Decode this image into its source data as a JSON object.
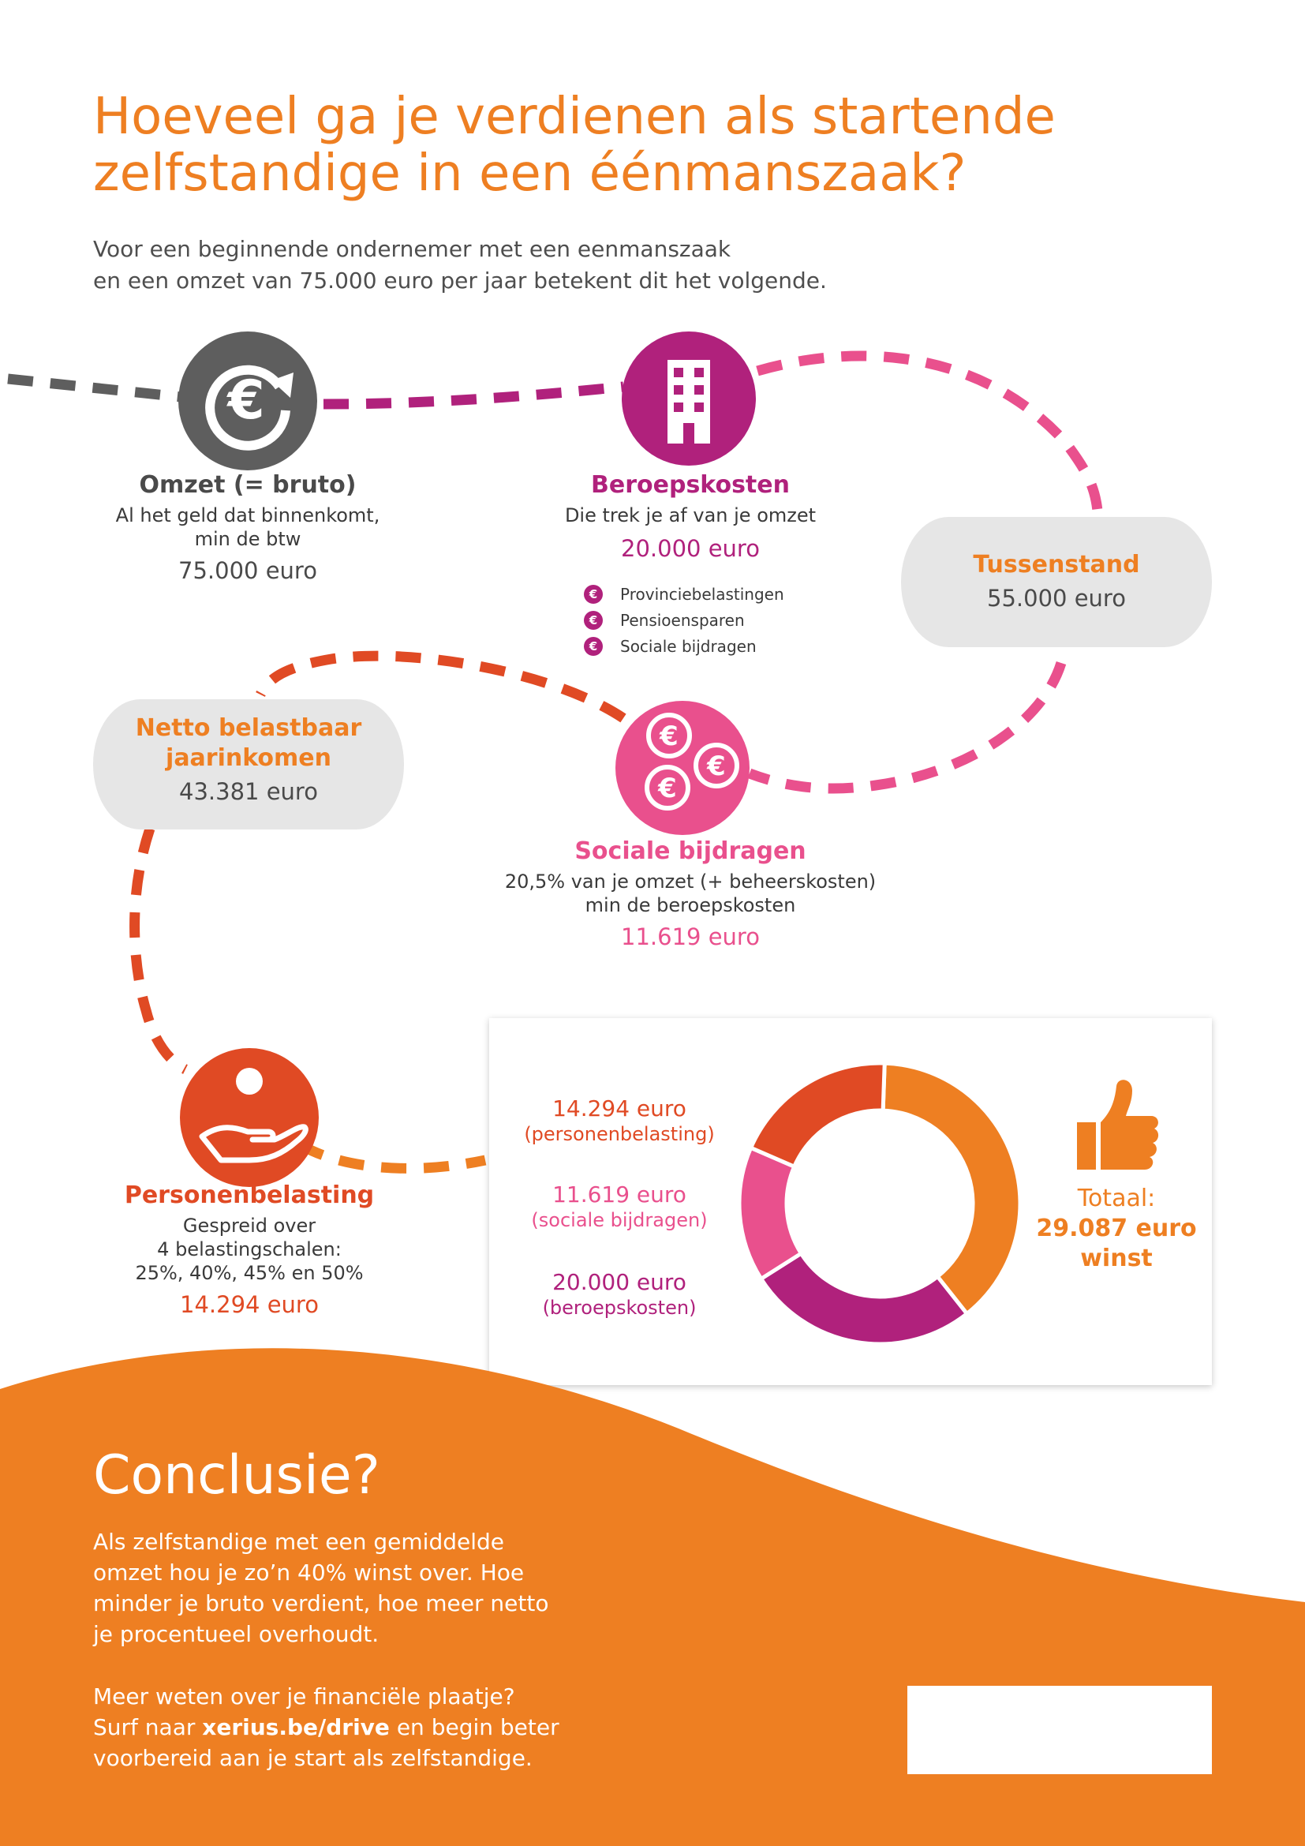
{
  "header": {
    "title_line1": "Hoeveel ga je verdienen als startende",
    "title_line2": "zelfstandige in een éénmanszaak?",
    "intro_line1": "Voor een beginnende ondernemer met een eenmanszaak",
    "intro_line2": "en een omzet van 75.000 euro per jaar betekent dit het volgende."
  },
  "colors": {
    "orange": "#ee7f22",
    "gray": "#5e5e5e",
    "purple": "#b0217c",
    "pink": "#e9508d",
    "red": "#e04a24",
    "panel": "#e6e6e6"
  },
  "steps": {
    "omzet": {
      "icon": "euro-cycle-icon",
      "title": "Omzet (= bruto)",
      "desc_line1": "Al het geld dat binnenkomt,",
      "desc_line2": "min de btw",
      "amount": "75.000 euro"
    },
    "beroepskosten": {
      "icon": "office-building-icon",
      "title": "Beroepskosten",
      "desc_line1": "Die trek je af van je omzet",
      "amount": "20.000 euro",
      "items": [
        "Provinciebelastingen",
        "Pensioensparen",
        "Sociale bijdragen"
      ]
    },
    "tussenstand": {
      "title": "Tussenstand",
      "amount": "55.000 euro"
    },
    "sociale": {
      "icon": "euro-coins-icon",
      "title": "Sociale bijdragen",
      "desc_line1": "20,5% van je omzet (+ beheerskosten)",
      "desc_line2": "min de beroepskosten",
      "amount": "11.619 euro"
    },
    "netto": {
      "title_line1": "Netto belastbaar",
      "title_line2": "jaarinkomen",
      "amount": "43.381 euro"
    },
    "personen": {
      "icon": "hand-person-icon",
      "title": "Personenbelasting",
      "desc_line1": "Gespreid over",
      "desc_line2": "4 belastingschalen:",
      "desc_line3": "25%, 40%, 45% en 50%",
      "amount": "14.294 euro"
    }
  },
  "chart_data": {
    "type": "pie",
    "categories": [
      "winst",
      "beroepskosten",
      "sociale bijdragen",
      "personenbelasting"
    ],
    "values": [
      29087,
      20000,
      11619,
      14294
    ],
    "colors": [
      "#ee7f22",
      "#b0217c",
      "#e9508d",
      "#e04a24"
    ],
    "labels": [
      {
        "amount": "14.294 euro",
        "name": "(personenbelasting)"
      },
      {
        "amount": "11.619 euro",
        "name": "(sociale bijdragen)"
      },
      {
        "amount": "20.000 euro",
        "name": "(beroepskosten)"
      }
    ],
    "total_label": "Totaal:",
    "total_value_line1": "29.087 euro",
    "total_value_line2": "winst"
  },
  "conclusion": {
    "title": "Conclusie?",
    "line1": "Als zelfstandige met een gemiddelde",
    "line2": "omzet hou je zo’n 40% winst over. Hoe",
    "line3": "minder je bruto verdient, hoe meer netto",
    "line4": "je procentueel overhoudt.",
    "more_line1": "Meer weten over je financiële plaatje?",
    "more_prefix": "Surf naar ",
    "more_link": "xerius.be/drive",
    "more_suffix": " en begin beter",
    "more_line3": "voorbereid aan je start als zelfstandige."
  }
}
